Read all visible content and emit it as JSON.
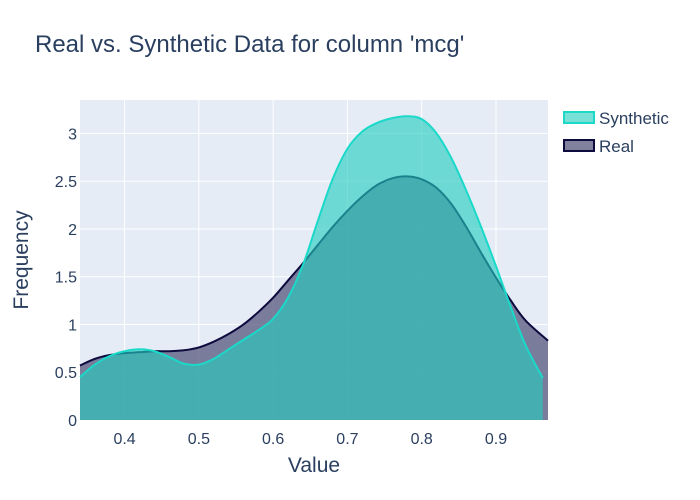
{
  "chart_data": {
    "type": "area",
    "title": "Real vs. Synthetic Data for column 'mcg'",
    "xlabel": "Value",
    "ylabel": "Frequency",
    "xlim": [
      0.34,
      0.97
    ],
    "ylim": [
      0,
      3.35
    ],
    "xticks": [
      0.4,
      0.5,
      0.6,
      0.7,
      0.8,
      0.9
    ],
    "xtick_labels": [
      "0.4",
      "0.5",
      "0.6",
      "0.7",
      "0.8",
      "0.9"
    ],
    "yticks": [
      0,
      0.5,
      1,
      1.5,
      2,
      2.5,
      3
    ],
    "ytick_labels": [
      "0",
      "0.5",
      "1",
      "1.5",
      "2",
      "2.5",
      "3"
    ],
    "grid": true,
    "legend_position": "top-right",
    "series": [
      {
        "name": "Real",
        "color": "#0d0a3e",
        "fill": "rgba(80,80,120,0.72)",
        "x": [
          0.34,
          0.36,
          0.38,
          0.4,
          0.42,
          0.44,
          0.46,
          0.48,
          0.5,
          0.52,
          0.54,
          0.56,
          0.58,
          0.6,
          0.62,
          0.64,
          0.66,
          0.68,
          0.7,
          0.72,
          0.74,
          0.76,
          0.78,
          0.8,
          0.82,
          0.84,
          0.86,
          0.88,
          0.9,
          0.92,
          0.94,
          0.97
        ],
        "y": [
          0.57,
          0.64,
          0.68,
          0.7,
          0.71,
          0.72,
          0.72,
          0.73,
          0.76,
          0.82,
          0.9,
          1.0,
          1.13,
          1.28,
          1.46,
          1.64,
          1.83,
          2.02,
          2.19,
          2.34,
          2.46,
          2.53,
          2.55,
          2.52,
          2.43,
          2.26,
          2.02,
          1.75,
          1.49,
          1.25,
          1.04,
          0.83
        ]
      },
      {
        "name": "Synthetic",
        "color": "#1ad9c8",
        "fill": "rgba(35,205,190,0.62)",
        "x": [
          0.34,
          0.36,
          0.38,
          0.4,
          0.42,
          0.44,
          0.46,
          0.48,
          0.5,
          0.52,
          0.54,
          0.56,
          0.58,
          0.6,
          0.62,
          0.64,
          0.66,
          0.68,
          0.7,
          0.72,
          0.74,
          0.76,
          0.78,
          0.8,
          0.82,
          0.84,
          0.86,
          0.88,
          0.9,
          0.92,
          0.94,
          0.963
        ],
        "y": [
          0.45,
          0.58,
          0.67,
          0.72,
          0.74,
          0.72,
          0.66,
          0.59,
          0.58,
          0.64,
          0.74,
          0.84,
          0.94,
          1.06,
          1.28,
          1.62,
          2.08,
          2.52,
          2.84,
          3.02,
          3.11,
          3.16,
          3.18,
          3.15,
          3.0,
          2.74,
          2.4,
          2.02,
          1.61,
          1.18,
          0.78,
          0.44
        ]
      }
    ]
  }
}
